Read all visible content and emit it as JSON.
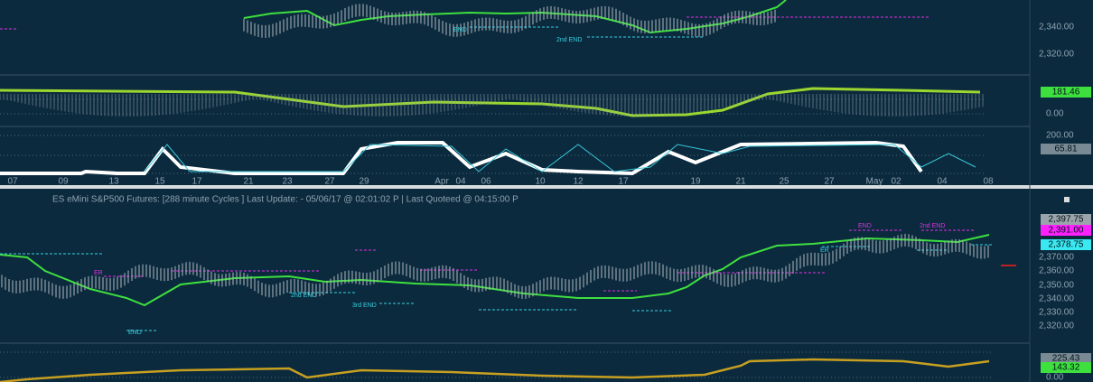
{
  "top_panel": {
    "price_axis": [
      "2,340.00",
      "2,320.00"
    ],
    "annotations": [
      "END",
      "2nd END"
    ]
  },
  "indicator_1": {
    "badge": "181.46",
    "axis": [
      "0.00"
    ]
  },
  "indicator_2": {
    "axis": [
      "200.00"
    ],
    "badge": "65.81"
  },
  "date_axis": [
    "07",
    "09",
    "13",
    "15",
    "17",
    "21",
    "23",
    "27",
    "29",
    "Apr",
    "04",
    "06",
    "10",
    "12",
    "17",
    "19",
    "21",
    "25",
    "27",
    "May",
    "02",
    "04",
    "08"
  ],
  "lower_panel": {
    "header": "ES eMini S&P500 Futures:  [288 minute Cycles ] Last Update:  - 05/06/17 @ 02:01:02 P | Last Quoteed @ 04:15:00 P",
    "badges": [
      "2,397.75",
      "2,391.00",
      "2,378.75"
    ],
    "price_axis": [
      "2,370.00",
      "2,360.00",
      "2,350.00",
      "2,340.00",
      "2,330.00",
      "2,320.00"
    ],
    "annotations": [
      "ER",
      "2nd END",
      "3rd END",
      "END",
      "END",
      "2nd END",
      "ER"
    ]
  },
  "bottom_indicator": {
    "badges": [
      "225.43",
      "143.32"
    ],
    "axis": [
      "0.00"
    ]
  }
}
